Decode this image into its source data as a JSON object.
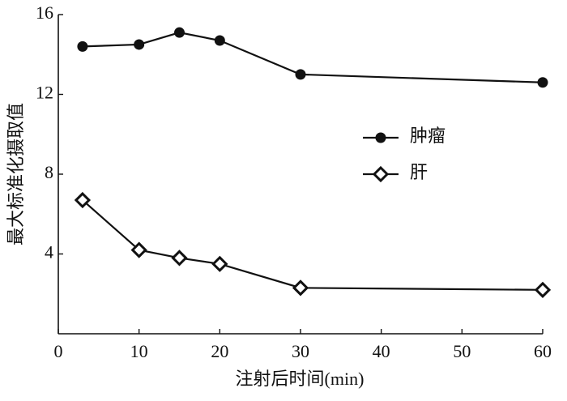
{
  "chart_data": {
    "type": "line",
    "x_label": "注射后时间(min)",
    "y_label": "最大标准化摄取值",
    "x": [
      3,
      10,
      15,
      20,
      30,
      60
    ],
    "series": [
      {
        "name": "肿瘤",
        "color": "#111111",
        "marker": "circle",
        "values": [
          14.4,
          14.5,
          15.1,
          14.7,
          13.0,
          12.6
        ]
      },
      {
        "name": "肝",
        "color": "#111111",
        "marker": "diamond",
        "values": [
          6.7,
          4.2,
          3.8,
          3.5,
          2.3,
          2.2
        ]
      }
    ],
    "xlim": [
      0,
      60
    ],
    "xticks": [
      0,
      10,
      20,
      30,
      40,
      50,
      60
    ],
    "ylim": [
      0,
      16
    ],
    "yticks": [
      4,
      8,
      12,
      16
    ],
    "grid": false,
    "legend": "right"
  }
}
